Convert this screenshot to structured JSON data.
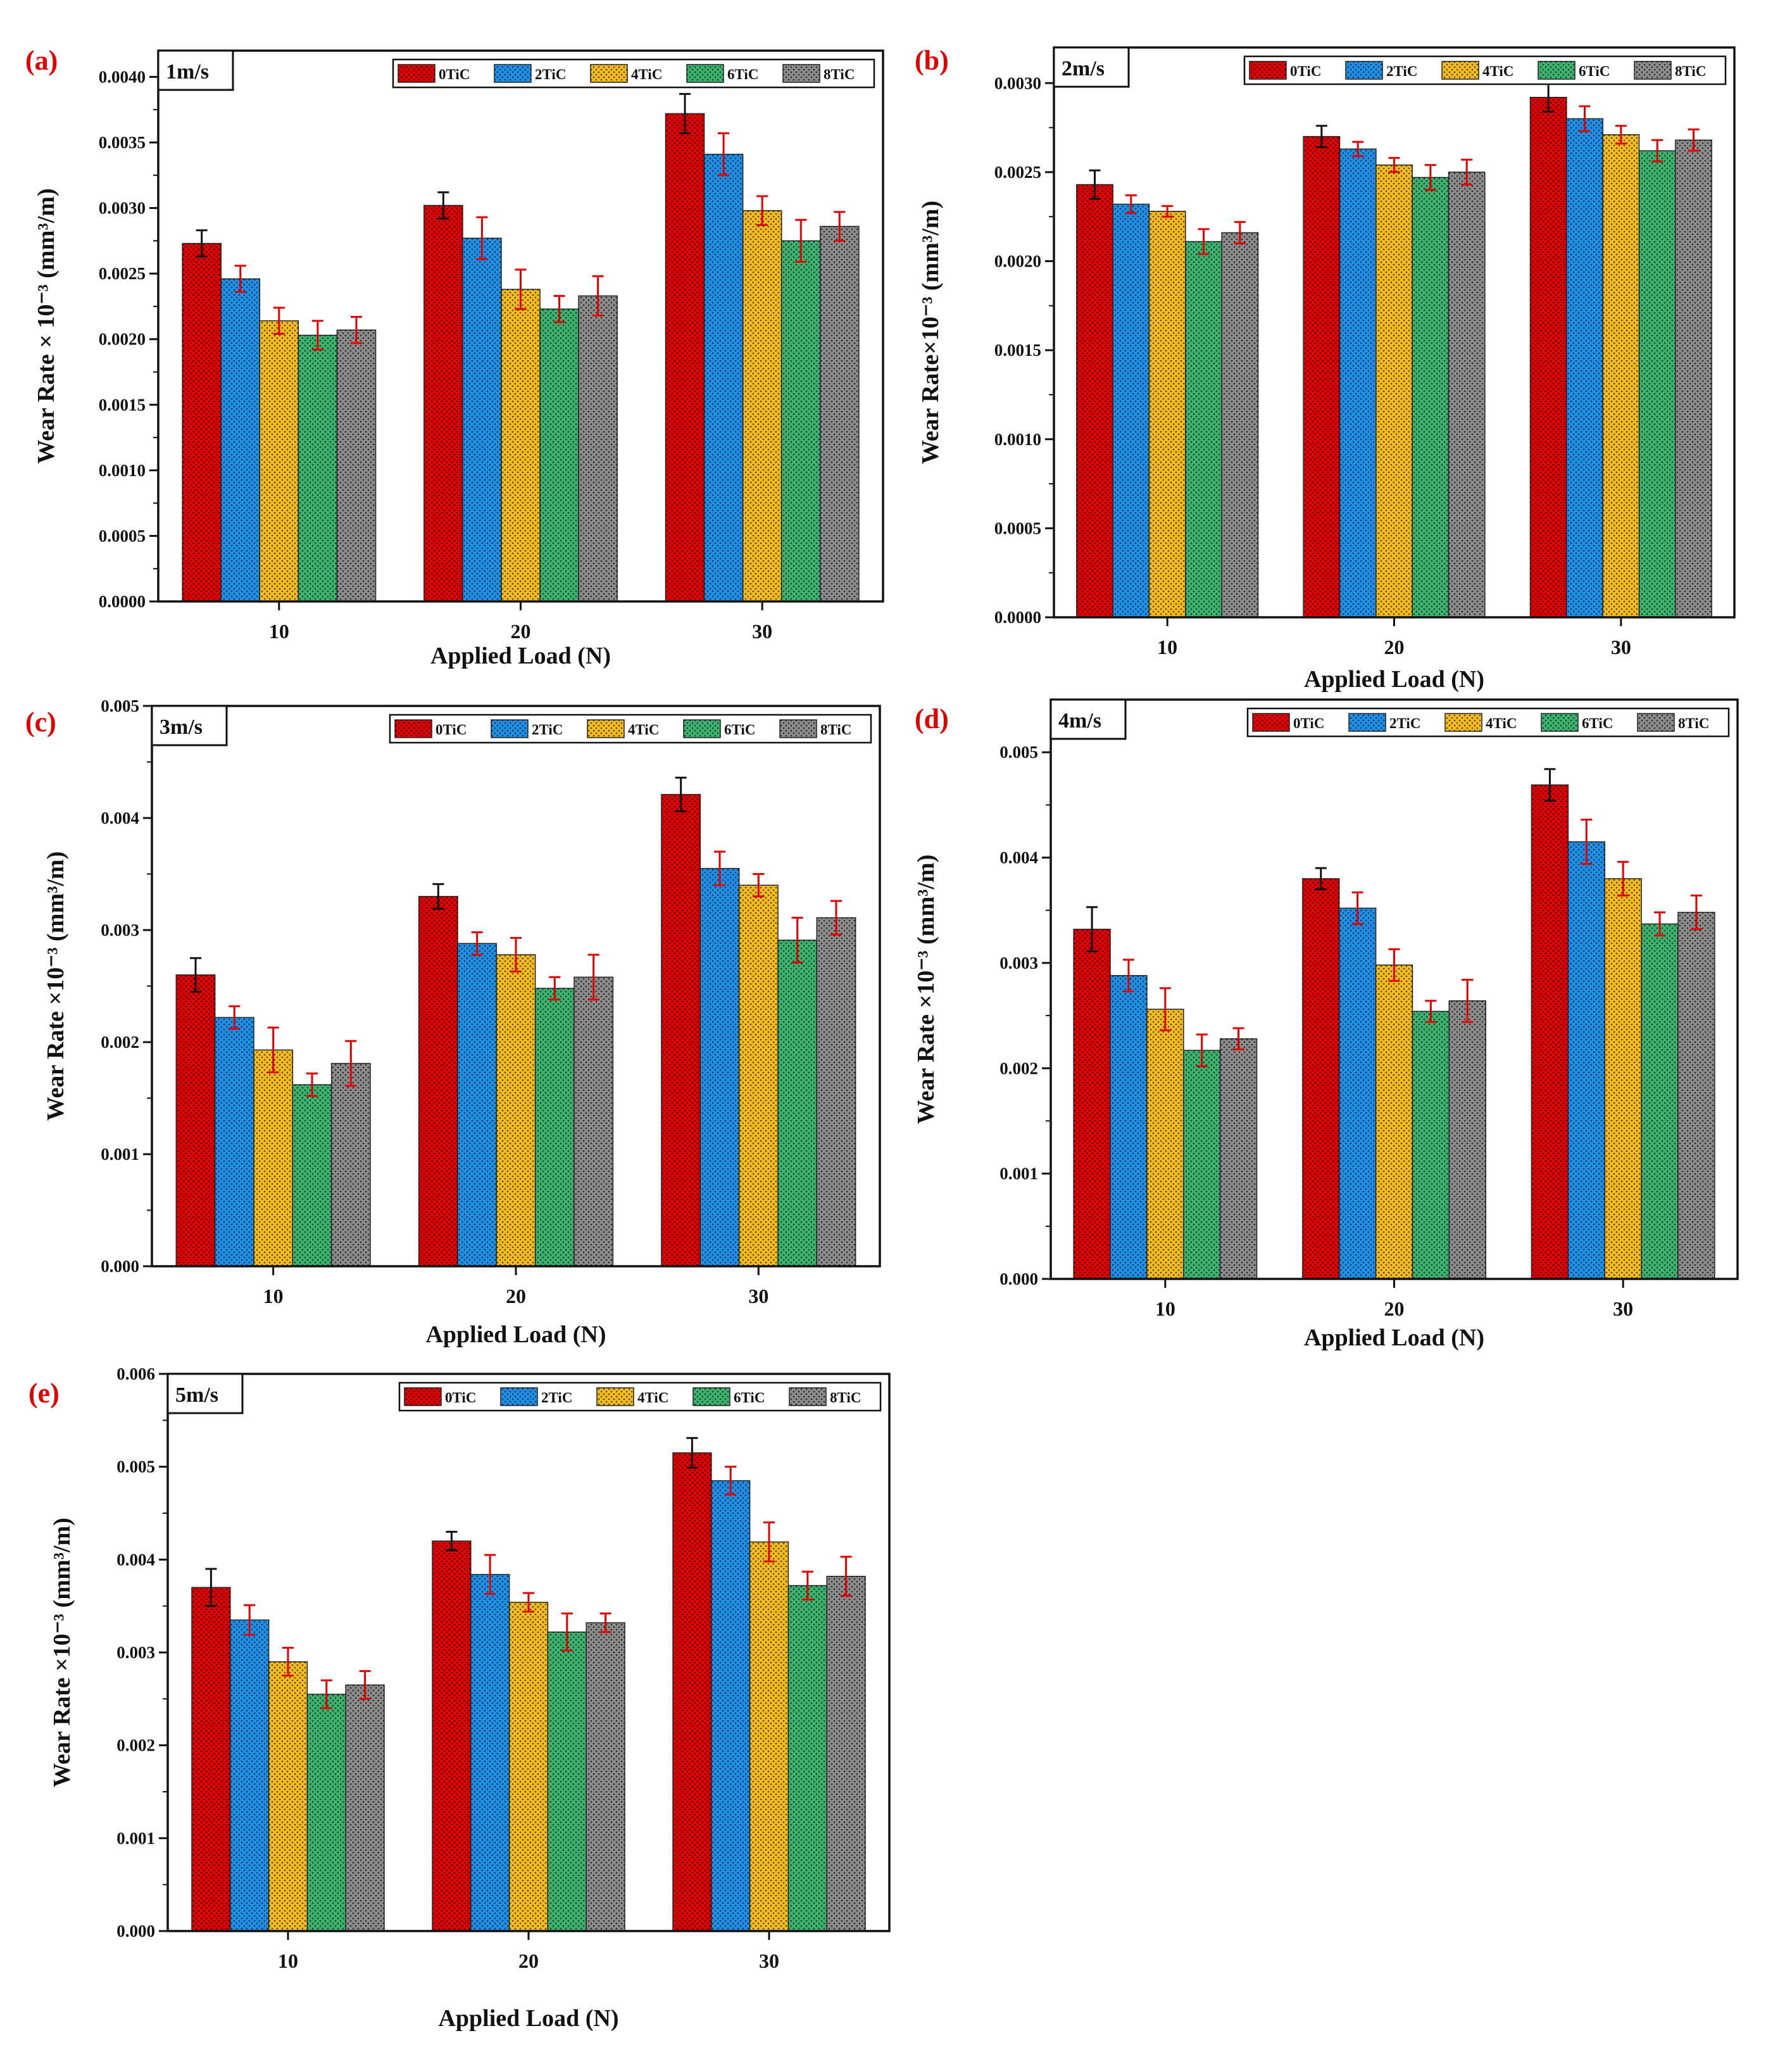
{
  "series_styles": [
    {
      "name": "0TiC",
      "color": "#e00000",
      "dot": "#3a0000"
    },
    {
      "name": "2TiC",
      "color": "#1e90e6",
      "dot": "#082e57"
    },
    {
      "name": "4TiC",
      "color": "#f2bd1b",
      "dot": "#5a4000"
    },
    {
      "name": "6TiC",
      "color": "#3cb371",
      "dot": "#0f3d22"
    },
    {
      "name": "8TiC",
      "color": "#8c8c8c",
      "dot": "#2a2a2a"
    }
  ],
  "error_bar_colors": {
    "0TiC": "#111111",
    "other": "#e00000"
  },
  "chart_data": [
    {
      "type": "bar",
      "panel": "(a)",
      "label": "1m/s",
      "xlabel": "Applied Load (N)",
      "ylabel": "Wear Rate × 10⁻³ (mm³/m)",
      "categories": [
        "10",
        "20",
        "30"
      ],
      "ylim": [
        0,
        0.0042
      ],
      "yticks": [
        "0.0000",
        "0.0005",
        "0.0010",
        "0.0015",
        "0.0020",
        "0.0025",
        "0.0030",
        "0.0035",
        "0.0040"
      ],
      "series": [
        {
          "name": "0TiC",
          "values": [
            0.00273,
            0.00302,
            0.00372
          ],
          "errors": [
            0.0001,
            0.0001,
            0.00015
          ]
        },
        {
          "name": "2TiC",
          "values": [
            0.00246,
            0.00277,
            0.00341
          ],
          "errors": [
            0.0001,
            0.00016,
            0.00016
          ]
        },
        {
          "name": "4TiC",
          "values": [
            0.00214,
            0.00238,
            0.00298
          ],
          "errors": [
            0.0001,
            0.00015,
            0.00011
          ]
        },
        {
          "name": "6TiC",
          "values": [
            0.00203,
            0.00223,
            0.00275
          ],
          "errors": [
            0.00011,
            0.0001,
            0.00016
          ]
        },
        {
          "name": "8TiC",
          "values": [
            0.00207,
            0.00233,
            0.00286
          ],
          "errors": [
            0.0001,
            0.00015,
            0.00011
          ]
        }
      ]
    },
    {
      "type": "bar",
      "panel": "(b)",
      "label": "2m/s",
      "xlabel": "Applied Load (N)",
      "ylabel": "Wear Rate×10⁻³ (mm³/m)",
      "categories": [
        "10",
        "20",
        "30"
      ],
      "ylim": [
        0,
        0.0032
      ],
      "yticks": [
        "0.0000",
        "0.0005",
        "0.0010",
        "0.0015",
        "0.0020",
        "0.0025",
        "0.0030"
      ],
      "series": [
        {
          "name": "0TiC",
          "values": [
            0.00243,
            0.0027,
            0.00292
          ],
          "errors": [
            8e-05,
            6e-05,
            8e-05
          ]
        },
        {
          "name": "2TiC",
          "values": [
            0.00232,
            0.00263,
            0.0028
          ],
          "errors": [
            5e-05,
            4e-05,
            7e-05
          ]
        },
        {
          "name": "4TiC",
          "values": [
            0.00228,
            0.00254,
            0.00271
          ],
          "errors": [
            3e-05,
            4e-05,
            5e-05
          ]
        },
        {
          "name": "6TiC",
          "values": [
            0.00211,
            0.00247,
            0.00262
          ],
          "errors": [
            7e-05,
            7e-05,
            6e-05
          ]
        },
        {
          "name": "8TiC",
          "values": [
            0.00216,
            0.0025,
            0.00268
          ],
          "errors": [
            6e-05,
            7e-05,
            6e-05
          ]
        }
      ]
    },
    {
      "type": "bar",
      "panel": "(c)",
      "label": "3m/s",
      "xlabel": "Applied Load (N)",
      "ylabel": "Wear Rate ×10⁻³ (mm³/m)",
      "categories": [
        "10",
        "20",
        "30"
      ],
      "ylim": [
        0,
        0.005
      ],
      "yticks": [
        "0.000",
        "0.001",
        "0.002",
        "0.003",
        "0.004",
        "0.005"
      ],
      "series": [
        {
          "name": "0TiC",
          "values": [
            0.0026,
            0.0033,
            0.00421
          ],
          "errors": [
            0.00015,
            0.00011,
            0.00015
          ]
        },
        {
          "name": "2TiC",
          "values": [
            0.00222,
            0.00288,
            0.00355
          ],
          "errors": [
            0.0001,
            0.0001,
            0.00015
          ]
        },
        {
          "name": "4TiC",
          "values": [
            0.00193,
            0.00278,
            0.0034
          ],
          "errors": [
            0.0002,
            0.00015,
            0.0001
          ]
        },
        {
          "name": "6TiC",
          "values": [
            0.00162,
            0.00248,
            0.00291
          ],
          "errors": [
            0.0001,
            0.0001,
            0.0002
          ]
        },
        {
          "name": "8TiC",
          "values": [
            0.00181,
            0.00258,
            0.00311
          ],
          "errors": [
            0.0002,
            0.0002,
            0.00015
          ]
        }
      ]
    },
    {
      "type": "bar",
      "panel": "(d)",
      "label": "4m/s",
      "xlabel": "Applied Load (N)",
      "ylabel": "Wear Rate ×10⁻³ (mm³/m)",
      "categories": [
        "10",
        "20",
        "30"
      ],
      "ylim": [
        0,
        0.0055
      ],
      "yticks": [
        "0.000",
        "0.001",
        "0.002",
        "0.003",
        "0.004",
        "0.005"
      ],
      "series": [
        {
          "name": "0TiC",
          "values": [
            0.00332,
            0.0038,
            0.00469
          ],
          "errors": [
            0.00021,
            0.0001,
            0.00015
          ]
        },
        {
          "name": "2TiC",
          "values": [
            0.00288,
            0.00352,
            0.00415
          ],
          "errors": [
            0.00015,
            0.00015,
            0.00021
          ]
        },
        {
          "name": "4TiC",
          "values": [
            0.00256,
            0.00298,
            0.0038
          ],
          "errors": [
            0.0002,
            0.00015,
            0.00016
          ]
        },
        {
          "name": "6TiC",
          "values": [
            0.00217,
            0.00254,
            0.00337
          ],
          "errors": [
            0.00015,
            0.0001,
            0.00011
          ]
        },
        {
          "name": "8TiC",
          "values": [
            0.00228,
            0.00264,
            0.00348
          ],
          "errors": [
            0.0001,
            0.0002,
            0.00016
          ]
        }
      ]
    },
    {
      "type": "bar",
      "panel": "(e)",
      "label": "5m/s",
      "xlabel": "Applied Load (N)",
      "ylabel": "Wear Rate ×10⁻³ (mm³/m)",
      "categories": [
        "10",
        "20",
        "30"
      ],
      "ylim": [
        0,
        0.006
      ],
      "yticks": [
        "0.000",
        "0.001",
        "0.002",
        "0.003",
        "0.004",
        "0.005",
        "0.006"
      ],
      "series": [
        {
          "name": "0TiC",
          "values": [
            0.0037,
            0.0042,
            0.00515
          ],
          "errors": [
            0.0002,
            0.0001,
            0.00016
          ]
        },
        {
          "name": "2TiC",
          "values": [
            0.00335,
            0.00384,
            0.00485
          ],
          "errors": [
            0.00016,
            0.00021,
            0.00015
          ]
        },
        {
          "name": "4TiC",
          "values": [
            0.0029,
            0.00354,
            0.00419
          ],
          "errors": [
            0.00015,
            0.0001,
            0.00021
          ]
        },
        {
          "name": "6TiC",
          "values": [
            0.00255,
            0.00322,
            0.00372
          ],
          "errors": [
            0.00015,
            0.0002,
            0.00015
          ]
        },
        {
          "name": "8TiC",
          "values": [
            0.00265,
            0.00332,
            0.00382
          ],
          "errors": [
            0.00015,
            0.0001,
            0.00021
          ]
        }
      ]
    }
  ]
}
